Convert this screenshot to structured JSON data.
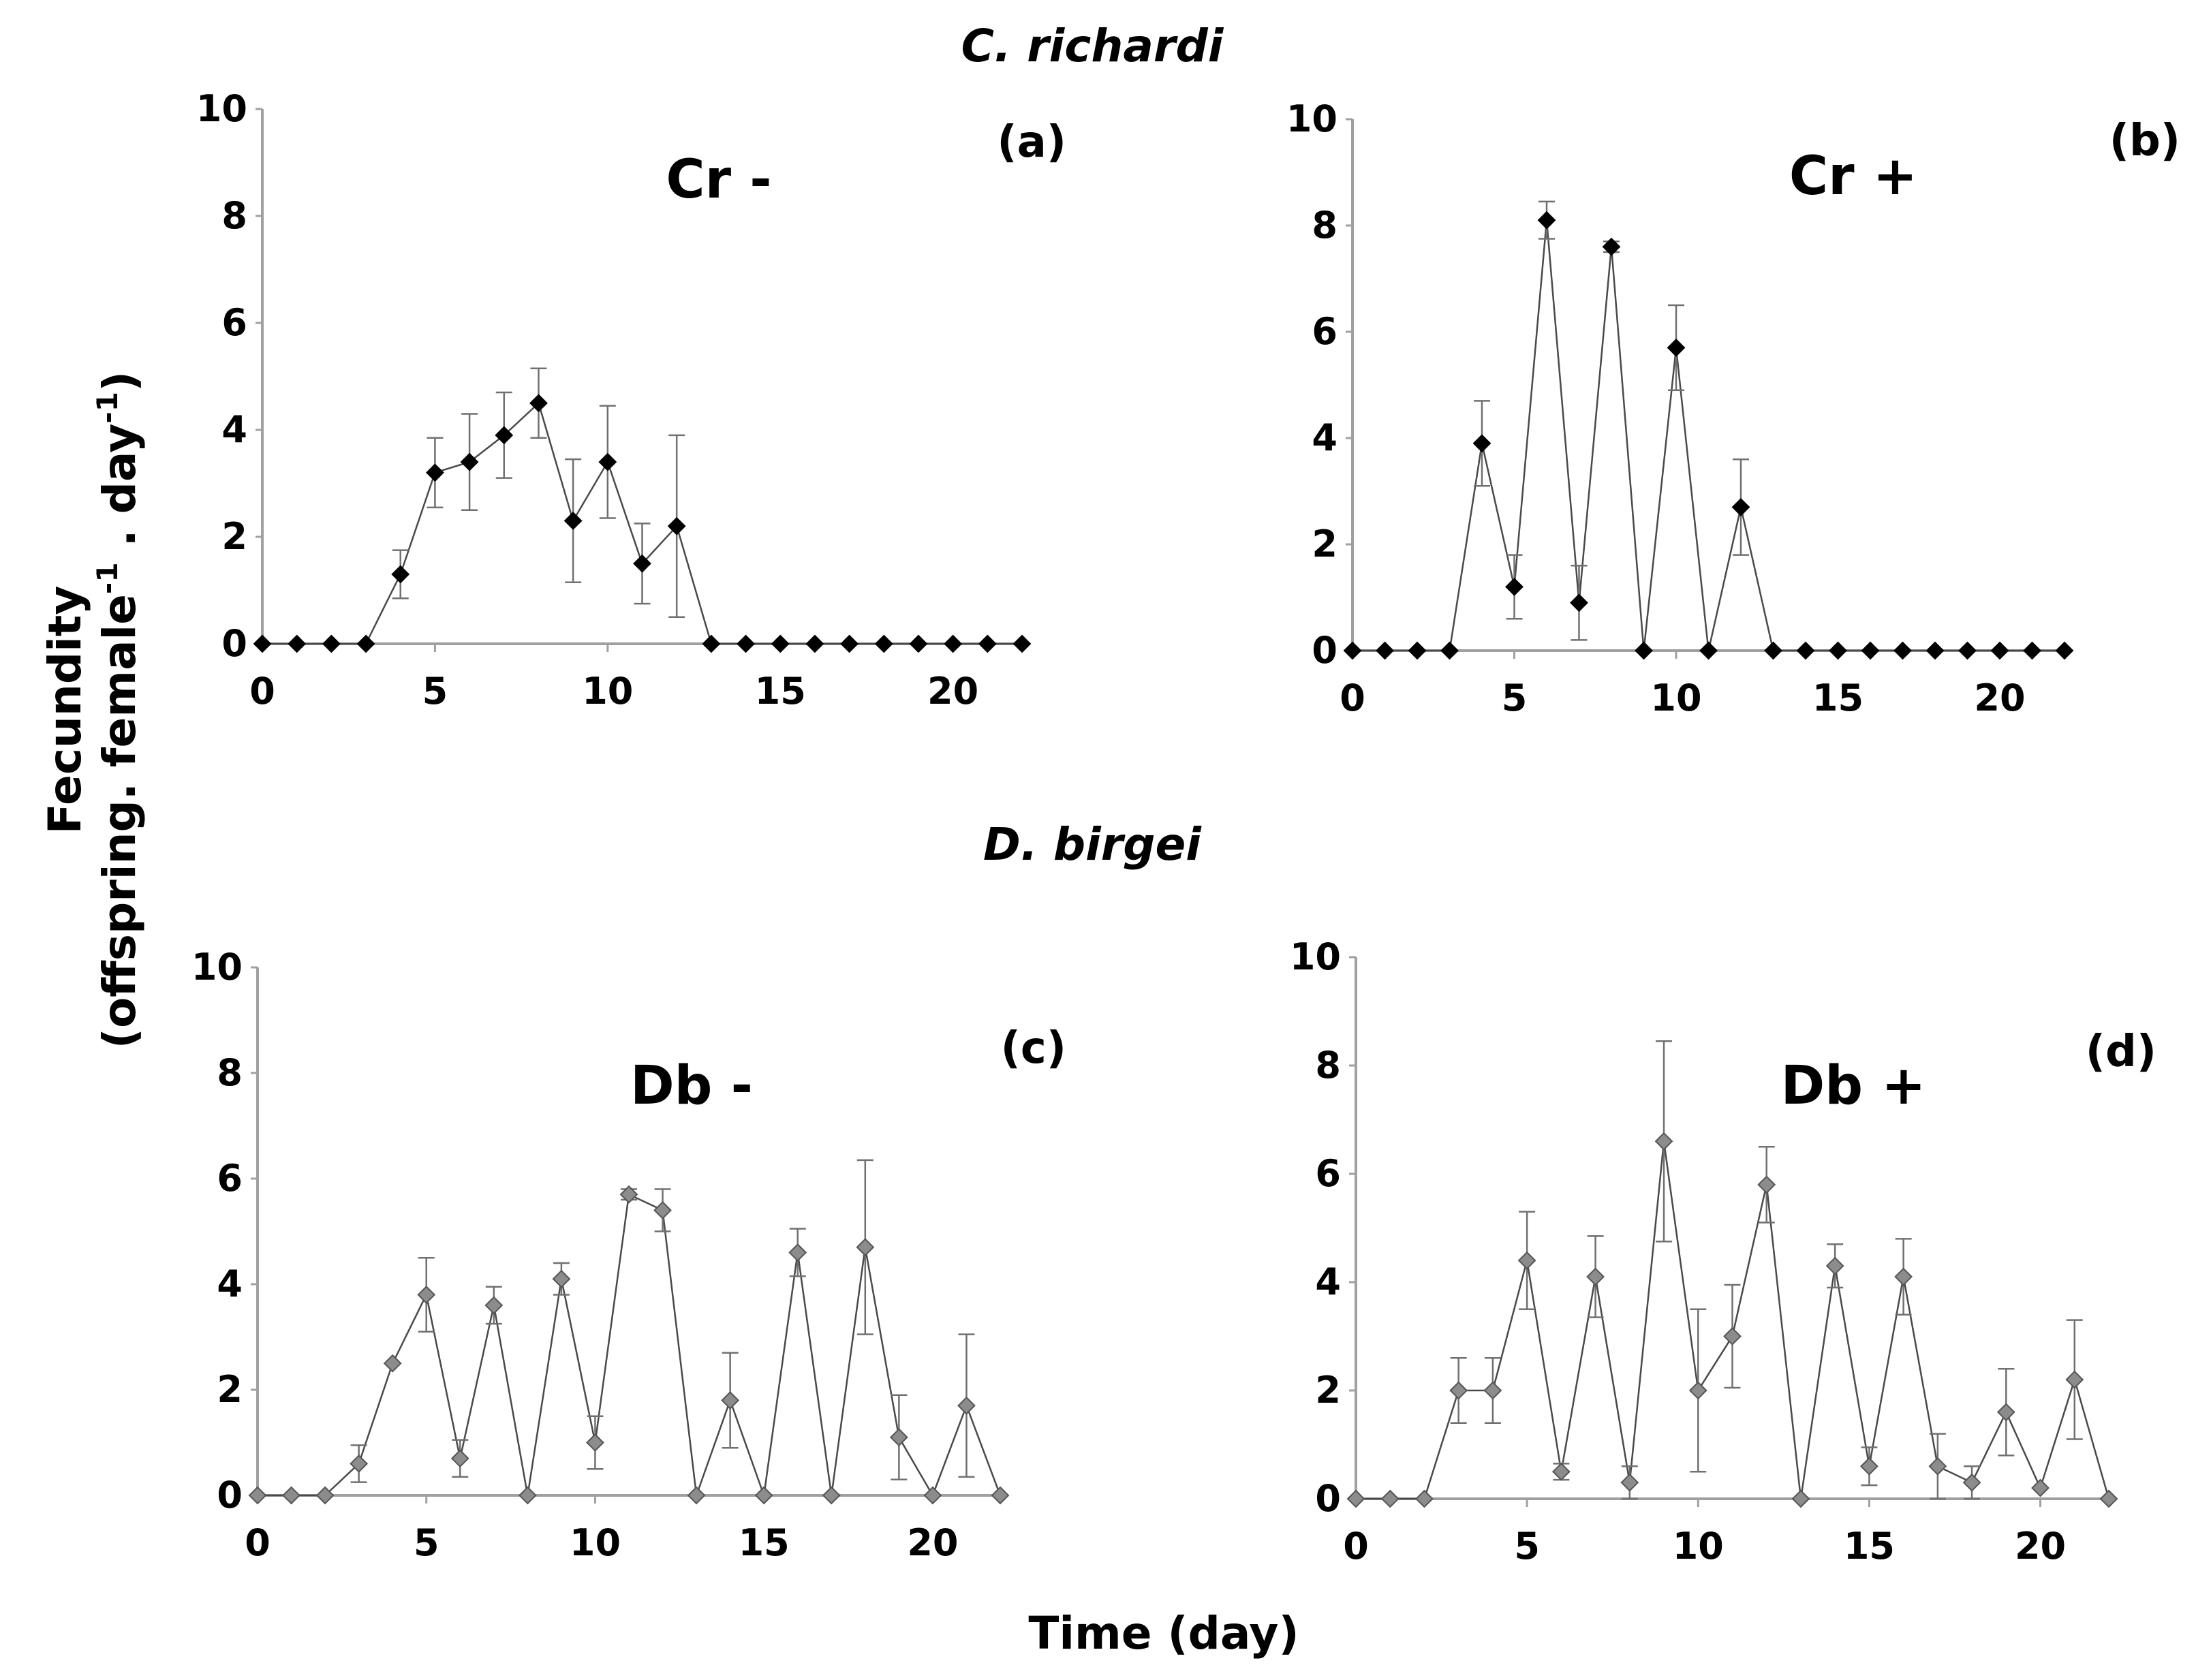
{
  "figure": {
    "species_top": "C. richardi",
    "species_bottom": "D. birgei",
    "ylabel_line1": "Fecundity",
    "ylabel_line2_a": "(offspring. female",
    "ylabel_line2_sup1": "-1",
    "ylabel_line2_b": " . day",
    "ylabel_line2_sup2": "-1",
    "ylabel_line2_c": ")",
    "xlabel": "Time (day)"
  },
  "colors": {
    "axis": "#a0a0a0",
    "line_dark": "#4a4a4a",
    "marker_dark": "#000000",
    "marker_gray": "#8c8c8c",
    "marker_gray_edge": "#555555",
    "errorbar": "#707070"
  },
  "chart_data": [
    {
      "id": "a",
      "type": "line",
      "title": "Cr -",
      "panel_label": "(a)",
      "marker": "dark",
      "xlabel": "Time (day)",
      "ylabel": "Fecundity (offspring. female-1 . day-1)",
      "xlim": [
        0,
        22
      ],
      "ylim": [
        0,
        10
      ],
      "xticks": [
        0,
        5,
        10,
        15,
        20
      ],
      "yticks": [
        0,
        2,
        4,
        6,
        8,
        10
      ],
      "x": [
        0,
        1,
        2,
        3,
        4,
        5,
        6,
        7,
        8,
        9,
        10,
        11,
        12,
        13,
        14,
        15,
        16,
        17,
        18,
        19,
        20,
        21,
        22
      ],
      "y": [
        0,
        0,
        0,
        0,
        1.3,
        3.2,
        3.4,
        3.9,
        4.5,
        2.3,
        3.4,
        1.5,
        2.2,
        0,
        0,
        0,
        0,
        0,
        0,
        0,
        0,
        0,
        0
      ],
      "err": [
        0,
        0,
        0,
        0,
        0.45,
        0.65,
        0.9,
        0.8,
        0.65,
        1.15,
        1.05,
        0.75,
        1.7,
        0,
        0,
        0,
        0,
        0,
        0,
        0,
        0,
        0,
        0
      ]
    },
    {
      "id": "b",
      "type": "line",
      "title": "Cr +",
      "panel_label": "(b)",
      "marker": "dark",
      "xlabel": "Time (day)",
      "ylabel": "Fecundity (offspring. female-1 . day-1)",
      "xlim": [
        0,
        22
      ],
      "ylim": [
        0,
        10
      ],
      "xticks": [
        0,
        5,
        10,
        15,
        20
      ],
      "yticks": [
        0,
        2,
        4,
        6,
        8,
        10
      ],
      "x": [
        0,
        1,
        2,
        3,
        4,
        5,
        6,
        7,
        8,
        9,
        10,
        11,
        12,
        13,
        14,
        15,
        16,
        17,
        18,
        19,
        20,
        21,
        22
      ],
      "y": [
        0,
        0,
        0,
        0,
        3.9,
        1.2,
        8.1,
        0.9,
        7.6,
        0,
        5.7,
        0,
        2.7,
        0,
        0,
        0,
        0,
        0,
        0,
        0,
        0,
        0,
        0
      ],
      "err": [
        0,
        0,
        0,
        0,
        0.8,
        0.6,
        0.35,
        0.7,
        0.1,
        0,
        0.8,
        0,
        0.9,
        0,
        0,
        0,
        0,
        0,
        0,
        0,
        0,
        0,
        0
      ]
    },
    {
      "id": "c",
      "type": "line",
      "title": "Db -",
      "panel_label": "(c)",
      "marker": "gray",
      "xlabel": "Time (day)",
      "ylabel": "Fecundity (offspring. female-1 . day-1)",
      "xlim": [
        0,
        22
      ],
      "ylim": [
        0,
        10
      ],
      "xticks": [
        0,
        5,
        10,
        15,
        20
      ],
      "yticks": [
        0,
        2,
        4,
        6,
        8,
        10
      ],
      "x": [
        0,
        1,
        2,
        3,
        4,
        5,
        6,
        7,
        8,
        9,
        10,
        11,
        12,
        13,
        14,
        15,
        16,
        17,
        18,
        19,
        20,
        21,
        22
      ],
      "y": [
        0,
        0,
        0,
        0.6,
        2.5,
        3.8,
        0.7,
        3.6,
        0,
        4.1,
        1.0,
        5.7,
        5.4,
        0,
        1.8,
        0,
        4.6,
        0,
        4.7,
        1.1,
        0,
        1.7,
        0
      ],
      "err": [
        0,
        0,
        0,
        0.35,
        0,
        0.7,
        0.35,
        0.35,
        0,
        0.3,
        0.5,
        0.1,
        0.4,
        0,
        0.9,
        0,
        0.45,
        0,
        1.65,
        0.8,
        0,
        1.35,
        0
      ]
    },
    {
      "id": "d",
      "type": "line",
      "title": "Db +",
      "panel_label": "(d)",
      "marker": "gray",
      "xlabel": "Time (day)",
      "ylabel": "Fecundity (offspring. female-1 . day-1)",
      "xlim": [
        0,
        22
      ],
      "ylim": [
        0,
        10
      ],
      "xticks": [
        0,
        5,
        10,
        15,
        20
      ],
      "yticks": [
        0,
        2,
        4,
        6,
        8,
        10
      ],
      "x": [
        0,
        1,
        2,
        3,
        4,
        5,
        6,
        7,
        8,
        9,
        10,
        11,
        12,
        13,
        14,
        15,
        16,
        17,
        18,
        19,
        20,
        21,
        22
      ],
      "y": [
        0,
        0,
        0,
        2.0,
        2.0,
        4.4,
        0.5,
        4.1,
        0.3,
        6.6,
        2.0,
        3.0,
        5.8,
        0,
        4.3,
        0.6,
        4.1,
        0.6,
        0.3,
        1.6,
        0.2,
        2.2,
        0
      ],
      "err": [
        0,
        0,
        0,
        0.6,
        0.6,
        0.9,
        0.15,
        0.75,
        0.3,
        1.85,
        1.5,
        0.95,
        0.7,
        0,
        0.4,
        0.35,
        0.7,
        0.6,
        0.3,
        0.8,
        0,
        1.1,
        0
      ]
    }
  ]
}
